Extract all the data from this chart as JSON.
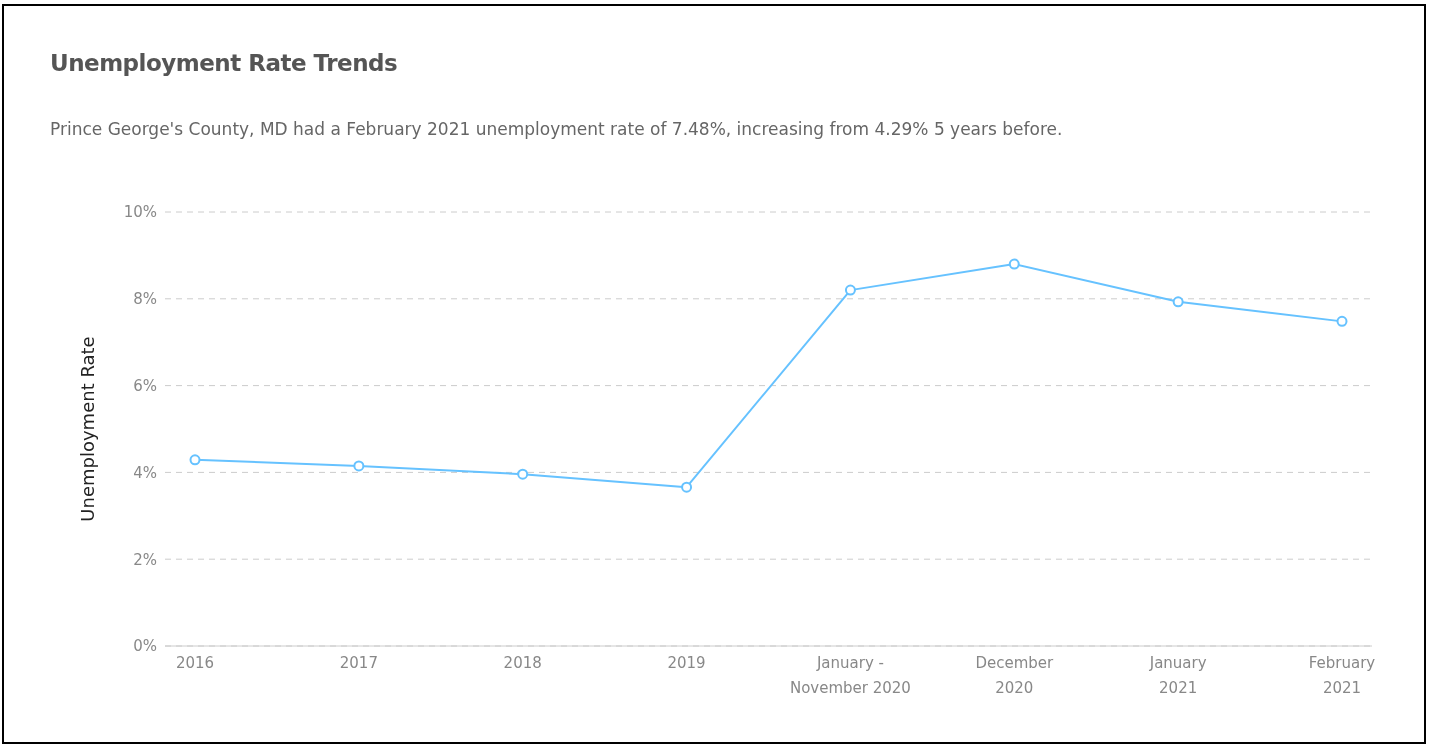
{
  "chart_data": {
    "type": "line",
    "title": "Unemployment Rate Trends",
    "subtitle": "Prince George's County, MD had a February 2021 unemployment rate of 7.48%, increasing from 4.29% 5 years before.",
    "ylabel": "Unemployment Rate",
    "categories": [
      "2016",
      "2017",
      "2018",
      "2019",
      "January -\nNovember 2020",
      "December\n2020",
      "January\n2021",
      "February\n2021"
    ],
    "series": [
      {
        "color": "#66c2ff",
        "values": [
          4.29,
          4.15,
          3.96,
          3.66,
          8.2,
          8.8,
          7.93,
          7.48
        ]
      }
    ],
    "ylim": [
      0,
      10
    ],
    "yticks": [
      {
        "value": 0,
        "label": "0%"
      },
      {
        "value": 2,
        "label": "2%"
      },
      {
        "value": 4,
        "label": "4%"
      },
      {
        "value": 6,
        "label": "6%"
      },
      {
        "value": 8,
        "label": "8%"
      },
      {
        "value": 10,
        "label": "10%"
      }
    ],
    "grid": "y",
    "marker": "circle",
    "line_style": "solid"
  }
}
